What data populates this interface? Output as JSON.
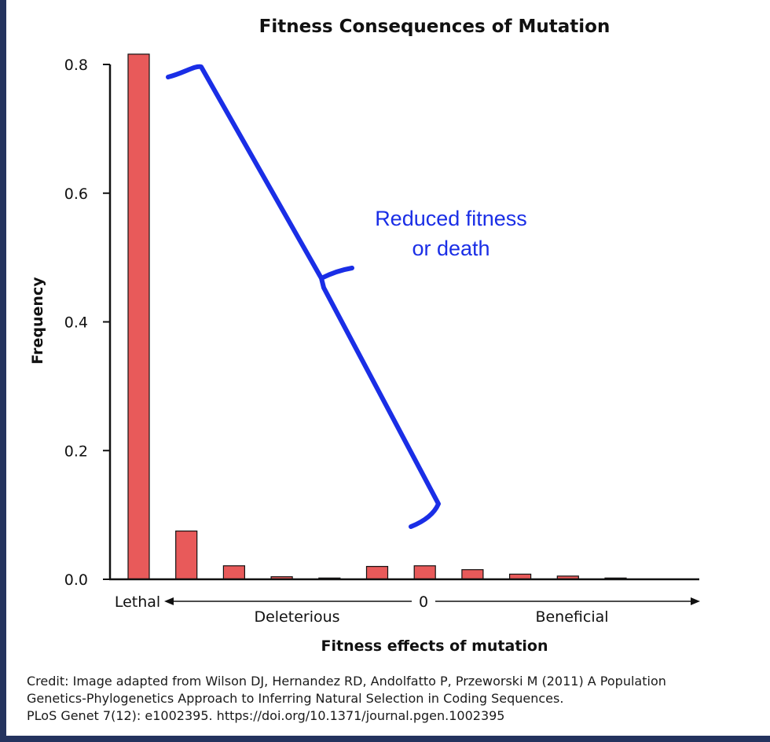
{
  "chart_data": {
    "type": "bar",
    "title": "Fitness Consequences of Mutation",
    "xlabel": "Fitness effects of mutation",
    "ylabel": "Frequency",
    "ylim": [
      0,
      0.82
    ],
    "yticks": [
      "0.0",
      "0.2",
      "0.4",
      "0.6",
      "0.8"
    ],
    "ytick_values": [
      0,
      0.2,
      0.4,
      0.6,
      0.8
    ],
    "categories": [
      "Lethal",
      "",
      "",
      "",
      "",
      "",
      "",
      "",
      "",
      "",
      ""
    ],
    "values": [
      0.816,
      0.075,
      0.021,
      0.004,
      0.002,
      0.02,
      0.021,
      0.015,
      0.008,
      0.005,
      0.002
    ],
    "bar_color": "#e85a5a",
    "axis_labels": {
      "lethal": "Lethal",
      "zero": "0",
      "deleterious": "Deleterious",
      "beneficial": "Beneficial"
    },
    "annotation": {
      "line1": "Reduced fitness",
      "line2": "or death",
      "color": "#1a2ee6"
    },
    "grid": false,
    "legend": "none"
  },
  "credit": {
    "line1": "Credit: Image adapted from Wilson DJ, Hernandez RD, Andolfatto P, Przeworski M (2011) A Population",
    "line2": "Genetics-Phylogenetics Approach to Inferring Natural Selection in Coding Sequences.",
    "line3": "PLoS Genet 7(12): e1002395. https://doi.org/10.1371/journal.pgen.1002395"
  },
  "frame_color": "#24335e"
}
